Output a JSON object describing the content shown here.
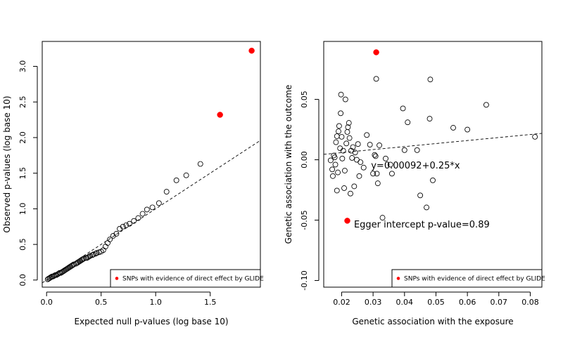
{
  "chart_data": [
    {
      "type": "scatter",
      "xlabel": "Expected null p-values (log base 10)",
      "ylabel": "Observed p-values (log base 10)",
      "xlim": [
        -0.04,
        1.96
      ],
      "ylim": [
        -0.1,
        3.35
      ],
      "xticks": [
        0.0,
        0.5,
        1.0,
        1.5
      ],
      "yticks": [
        0.0,
        0.5,
        1.0,
        1.5,
        2.0,
        2.5,
        3.0
      ],
      "tick_labels_x": [
        "0.0",
        "0.5",
        "1.0",
        "1.5"
      ],
      "tick_labels_y": [
        "0.0",
        "0.5",
        "1.0",
        "1.5",
        "2.0",
        "2.5",
        "3.0"
      ],
      "legend": {
        "label": "SNPs with evidence of direct effect by GLIDE",
        "position": "bottom-right",
        "color": "#ff0000"
      },
      "reference_line": {
        "slope": 1,
        "intercept": 0,
        "style": "dashed"
      },
      "points_open": [
        [
          0.01,
          0.01
        ],
        [
          0.02,
          0.02
        ],
        [
          0.03,
          0.03
        ],
        [
          0.04,
          0.04
        ],
        [
          0.05,
          0.05
        ],
        [
          0.06,
          0.05
        ],
        [
          0.07,
          0.06
        ],
        [
          0.08,
          0.07
        ],
        [
          0.09,
          0.07
        ],
        [
          0.1,
          0.08
        ],
        [
          0.11,
          0.09
        ],
        [
          0.12,
          0.1
        ],
        [
          0.13,
          0.1
        ],
        [
          0.14,
          0.11
        ],
        [
          0.15,
          0.12
        ],
        [
          0.16,
          0.13
        ],
        [
          0.17,
          0.14
        ],
        [
          0.18,
          0.15
        ],
        [
          0.19,
          0.16
        ],
        [
          0.2,
          0.17
        ],
        [
          0.21,
          0.18
        ],
        [
          0.22,
          0.19
        ],
        [
          0.23,
          0.2
        ],
        [
          0.24,
          0.21
        ],
        [
          0.25,
          0.22
        ],
        [
          0.27,
          0.23
        ],
        [
          0.28,
          0.24
        ],
        [
          0.29,
          0.25
        ],
        [
          0.3,
          0.26
        ],
        [
          0.31,
          0.27
        ],
        [
          0.32,
          0.28
        ],
        [
          0.33,
          0.29
        ],
        [
          0.34,
          0.3
        ],
        [
          0.36,
          0.31
        ],
        [
          0.37,
          0.31
        ],
        [
          0.38,
          0.32
        ],
        [
          0.39,
          0.33
        ],
        [
          0.4,
          0.34
        ],
        [
          0.42,
          0.35
        ],
        [
          0.43,
          0.36
        ],
        [
          0.45,
          0.37
        ],
        [
          0.46,
          0.38
        ],
        [
          0.48,
          0.39
        ],
        [
          0.5,
          0.4
        ],
        [
          0.52,
          0.42
        ],
        [
          0.54,
          0.47
        ],
        [
          0.56,
          0.52
        ],
        [
          0.58,
          0.57
        ],
        [
          0.61,
          0.62
        ],
        [
          0.64,
          0.65
        ],
        [
          0.67,
          0.72
        ],
        [
          0.7,
          0.75
        ],
        [
          0.73,
          0.77
        ],
        [
          0.76,
          0.79
        ],
        [
          0.8,
          0.83
        ],
        [
          0.84,
          0.87
        ],
        [
          0.88,
          0.93
        ],
        [
          0.92,
          0.99
        ],
        [
          0.97,
          1.02
        ],
        [
          1.03,
          1.08
        ],
        [
          1.1,
          1.24
        ],
        [
          1.19,
          1.4
        ],
        [
          1.28,
          1.47
        ],
        [
          1.41,
          1.63
        ]
      ],
      "points_highlight": [
        [
          1.59,
          2.32
        ],
        [
          1.88,
          3.22
        ]
      ]
    },
    {
      "type": "scatter",
      "xlabel": "Genetic association with the exposure",
      "ylabel": "Genetic association with the outcome",
      "xlim": [
        0.0143,
        0.0837
      ],
      "ylim": [
        -0.1055,
        0.098
      ],
      "xticks": [
        0.02,
        0.03,
        0.04,
        0.05,
        0.06,
        0.07,
        0.08
      ],
      "yticks": [
        -0.1,
        -0.05,
        0.0,
        0.05
      ],
      "tick_labels_x": [
        "0.02",
        "0.03",
        "0.04",
        "0.05",
        "0.06",
        "0.07",
        "0.08"
      ],
      "tick_labels_y": [
        "-0.10",
        "-0.05",
        "0.00",
        "0.05"
      ],
      "legend": {
        "label": "SNPs with evidence of direct effect by GLIDE",
        "position": "bottom-right",
        "color": "#ff0000"
      },
      "regression_line": {
        "intercept": 0.00092,
        "slope": 0.25,
        "style": "dashed"
      },
      "annotations": [
        "y=0.00092+0.25*x",
        "Egger intercept p-value=0.89"
      ],
      "annotation_positions": [
        [
          0.0435,
          -0.0045
        ],
        [
          0.0455,
          -0.0535
        ]
      ],
      "points_open": [
        [
          0.0165,
          -0.0005
        ],
        [
          0.017,
          -0.008
        ],
        [
          0.0172,
          -0.0135
        ],
        [
          0.0175,
          0.0035
        ],
        [
          0.0178,
          0.002
        ],
        [
          0.018,
          -0.004
        ],
        [
          0.0182,
          0.0145
        ],
        [
          0.0185,
          0.0195
        ],
        [
          0.0185,
          -0.0255
        ],
        [
          0.0188,
          -0.0105
        ],
        [
          0.019,
          0.0235
        ],
        [
          0.0192,
          0.028
        ],
        [
          0.0195,
          0.0095
        ],
        [
          0.0197,
          0.0385
        ],
        [
          0.0198,
          0.054
        ],
        [
          0.02,
          0.019
        ],
        [
          0.0202,
          0.001
        ],
        [
          0.0205,
          0.0075
        ],
        [
          0.0208,
          -0.0235
        ],
        [
          0.021,
          -0.009
        ],
        [
          0.0212,
          0.05
        ],
        [
          0.0215,
          0.0135
        ],
        [
          0.0218,
          0.023
        ],
        [
          0.022,
          0.027
        ],
        [
          0.0223,
          0.0305
        ],
        [
          0.0225,
          0.018
        ],
        [
          0.0228,
          -0.028
        ],
        [
          0.023,
          0.0075
        ],
        [
          0.0233,
          0.0015
        ],
        [
          0.0236,
          0.0105
        ],
        [
          0.024,
          -0.022
        ],
        [
          0.0243,
          0.006
        ],
        [
          0.0248,
          0.0
        ],
        [
          0.0252,
          0.013
        ],
        [
          0.0256,
          -0.0135
        ],
        [
          0.026,
          -0.002
        ],
        [
          0.027,
          -0.0065
        ],
        [
          0.028,
          0.0205
        ],
        [
          0.029,
          0.0125
        ],
        [
          0.03,
          -0.0115
        ],
        [
          0.0305,
          0.004
        ],
        [
          0.0308,
          0.003
        ],
        [
          0.031,
          0.067
        ],
        [
          0.0312,
          -0.0115
        ],
        [
          0.0315,
          -0.0195
        ],
        [
          0.032,
          0.012
        ],
        [
          0.033,
          -0.048
        ],
        [
          0.034,
          0.001
        ],
        [
          0.0355,
          -0.004
        ],
        [
          0.036,
          -0.0115
        ],
        [
          0.0395,
          0.0425
        ],
        [
          0.04,
          0.008
        ],
        [
          0.041,
          0.031
        ],
        [
          0.044,
          0.008
        ],
        [
          0.045,
          -0.0295
        ],
        [
          0.047,
          -0.0395
        ],
        [
          0.048,
          0.034
        ],
        [
          0.0482,
          0.0665
        ],
        [
          0.049,
          -0.017
        ],
        [
          0.0555,
          0.0265
        ],
        [
          0.06,
          0.025
        ],
        [
          0.066,
          0.0455
        ],
        [
          0.0815,
          0.019
        ]
      ],
      "points_highlight": [
        [
          0.031,
          0.089
        ],
        [
          0.0218,
          -0.0505
        ]
      ]
    }
  ]
}
